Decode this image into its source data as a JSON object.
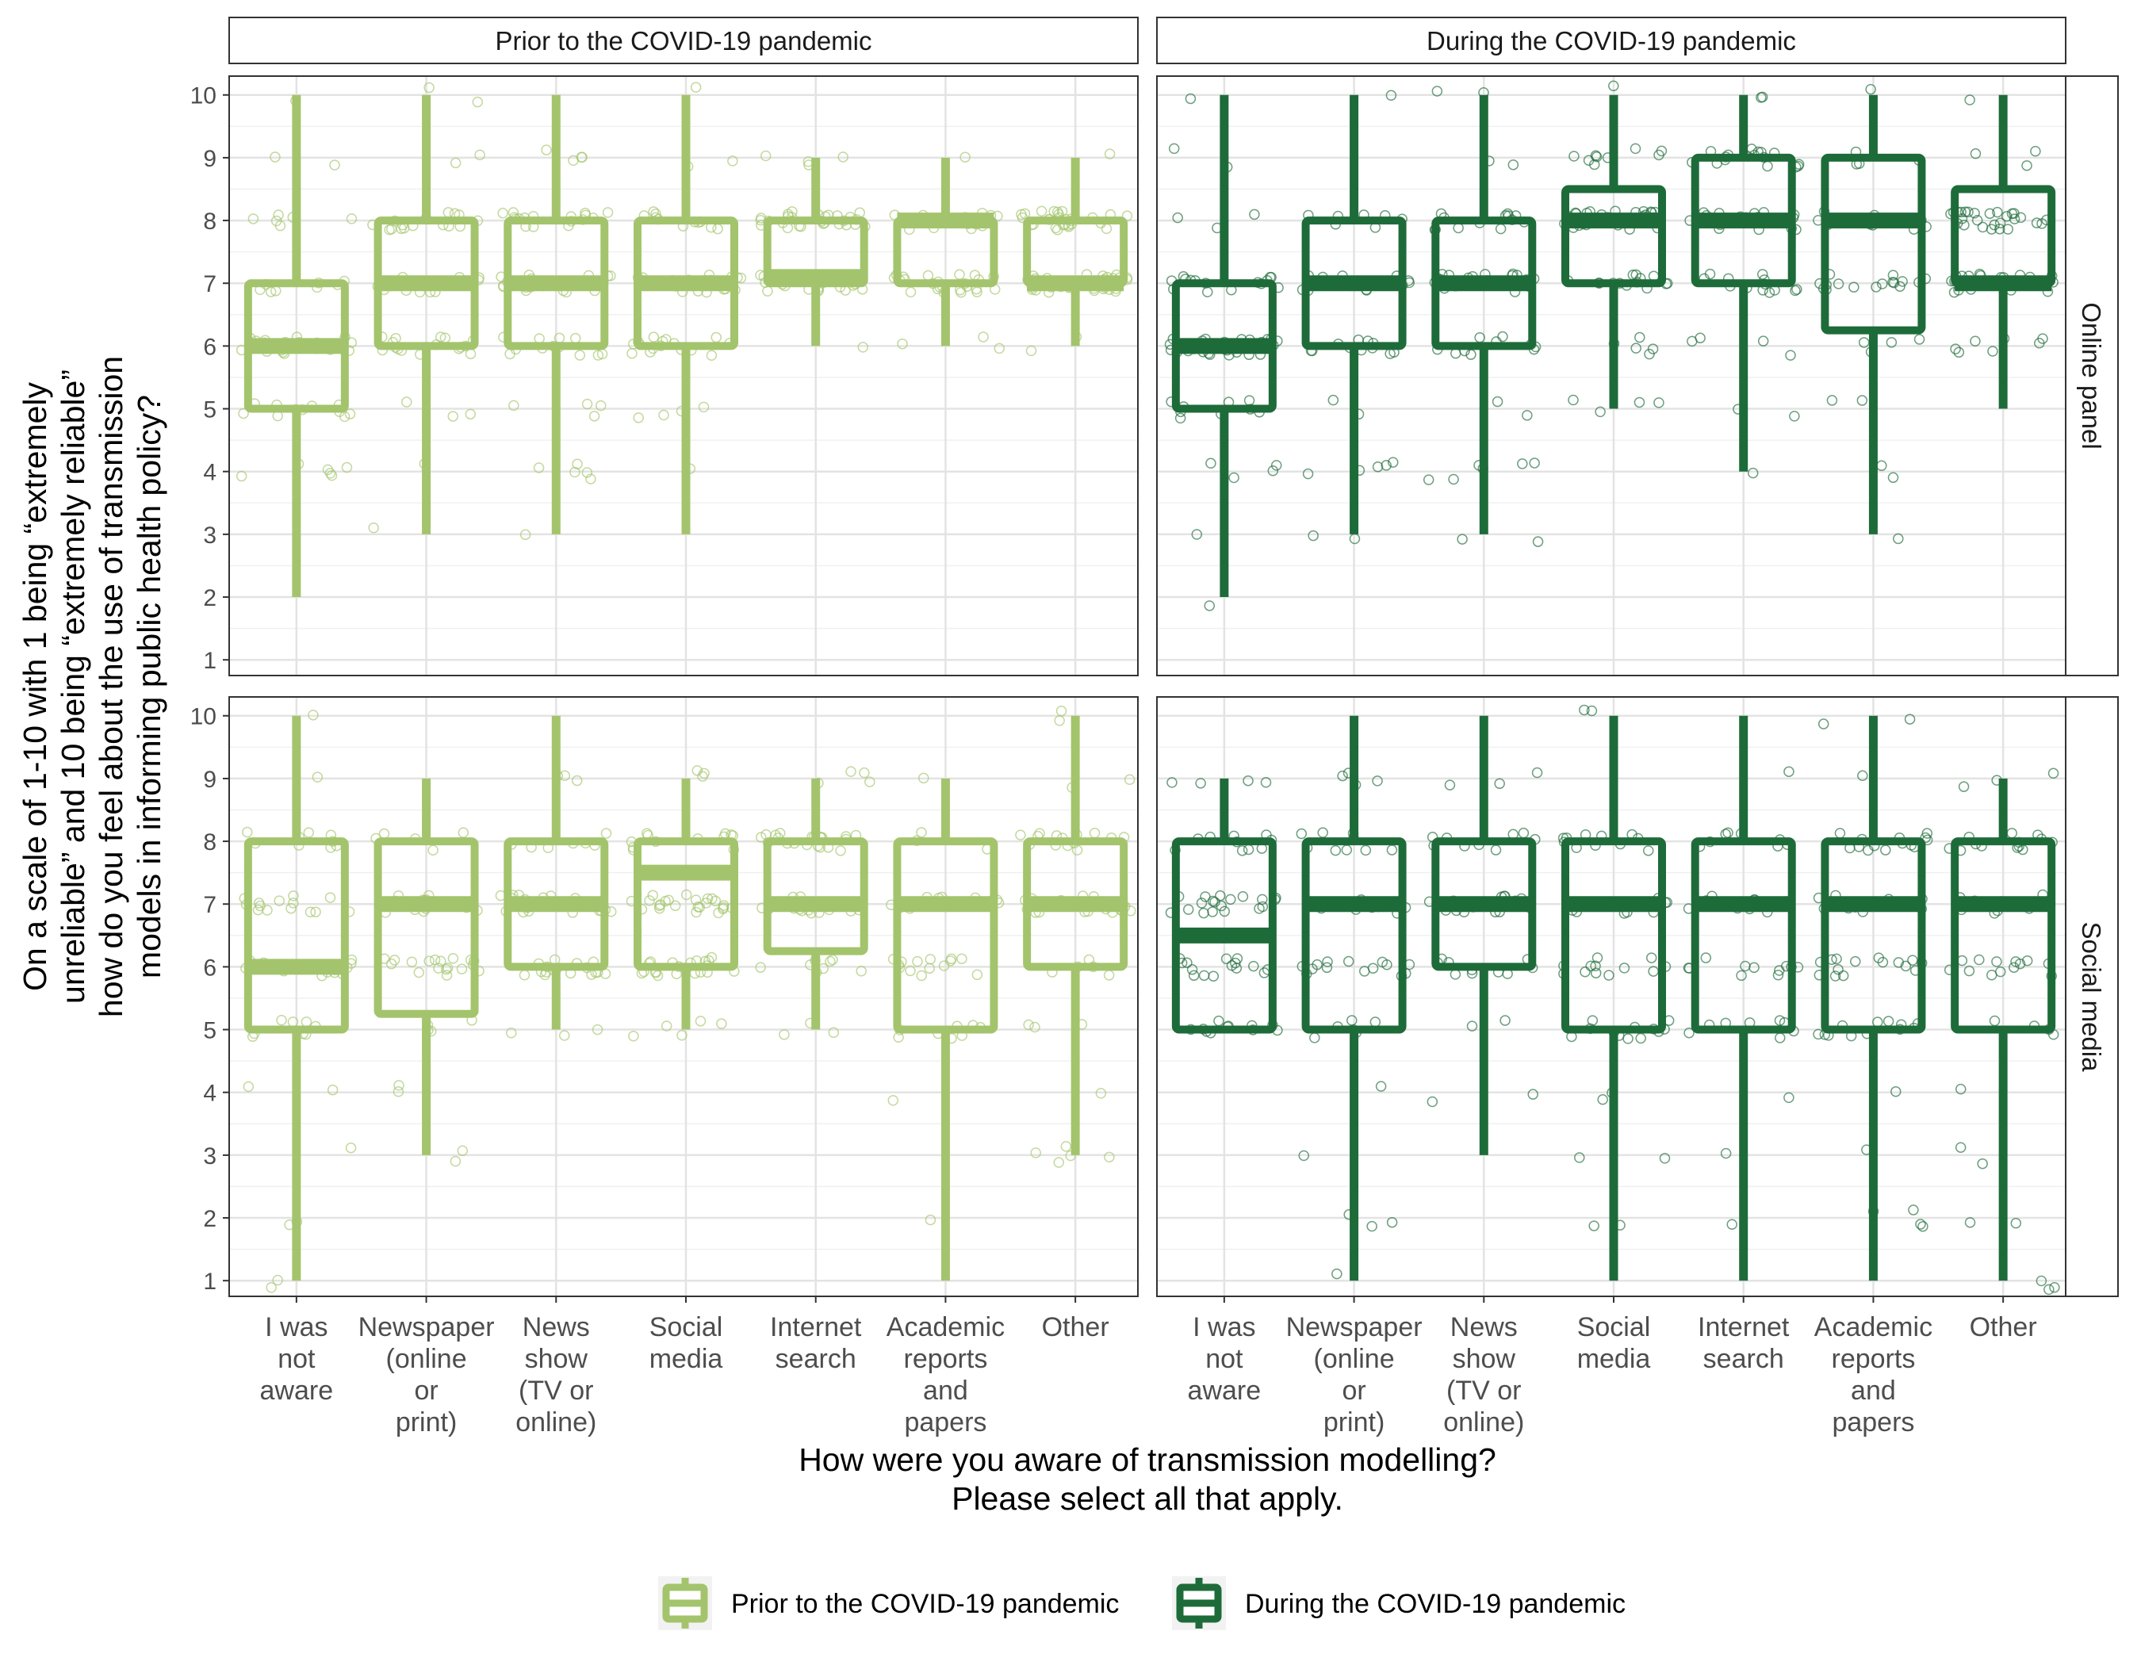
{
  "chart_data": {
    "type": "boxplot",
    "y_axis_label_lines": [
      "On a scale of 1-10 with 1 being “extremely",
      "unreliable” and 10 being “extremely reliable”",
      "how do you feel about the use of transmission",
      "models in informing public health policy?"
    ],
    "x_axis_label_lines": [
      "How were you aware of transmission modelling?",
      "Please select all that apply."
    ],
    "ylim": [
      1,
      10
    ],
    "y_ticks": [
      "1",
      "2",
      "3",
      "4",
      "5",
      "6",
      "7",
      "8",
      "9",
      "10"
    ],
    "grid": true,
    "legend_position": "bottom",
    "categories": [
      [
        "I was",
        "not",
        "aware"
      ],
      [
        "Newspaper",
        "(online",
        "or",
        "print)"
      ],
      [
        "News",
        "show",
        "(TV or",
        "online)"
      ],
      [
        "Social",
        "media"
      ],
      [
        "Internet",
        "search"
      ],
      [
        "Academic",
        "reports",
        "and",
        "papers"
      ],
      [
        "Other"
      ]
    ],
    "column_facets": [
      "Prior to the COVID-19 pandemic",
      "During the COVID-19 pandemic"
    ],
    "row_facets": [
      "Online panel",
      "Social media"
    ],
    "series": [
      {
        "name": "Prior to the COVID-19 pandemic",
        "color": "#a3c46c"
      },
      {
        "name": "During the COVID-19 pandemic",
        "color": "#1e6b3a"
      }
    ],
    "panels": [
      {
        "col": 0,
        "row": 0,
        "series": 0,
        "boxes": [
          {
            "min": 2,
            "q1": 5,
            "median": 6,
            "q3": 7,
            "max": 10
          },
          {
            "min": 3,
            "q1": 6,
            "median": 7,
            "q3": 8,
            "max": 10
          },
          {
            "min": 3,
            "q1": 6,
            "median": 7,
            "q3": 8,
            "max": 10
          },
          {
            "min": 3,
            "q1": 6,
            "median": 7,
            "q3": 8,
            "max": 10
          },
          {
            "min": 6,
            "q1": 7,
            "median": 7.1,
            "q3": 8,
            "max": 9
          },
          {
            "min": 6,
            "q1": 7,
            "median": 8,
            "q3": 8,
            "max": 9
          },
          {
            "min": 6,
            "q1": 7,
            "median": 7,
            "q3": 8,
            "max": 9
          }
        ]
      },
      {
        "col": 1,
        "row": 0,
        "series": 1,
        "boxes": [
          {
            "min": 2,
            "q1": 5,
            "median": 6,
            "q3": 7,
            "max": 10
          },
          {
            "min": 3,
            "q1": 6,
            "median": 7,
            "q3": 8,
            "max": 10
          },
          {
            "min": 3,
            "q1": 6,
            "median": 7,
            "q3": 8,
            "max": 10
          },
          {
            "min": 5,
            "q1": 7,
            "median": 8,
            "q3": 8.5,
            "max": 10
          },
          {
            "min": 4,
            "q1": 7,
            "median": 8,
            "q3": 9,
            "max": 10
          },
          {
            "min": 3,
            "q1": 6.25,
            "median": 8,
            "q3": 9,
            "max": 10
          },
          {
            "min": 5,
            "q1": 7,
            "median": 7,
            "q3": 8.5,
            "max": 10
          }
        ]
      },
      {
        "col": 0,
        "row": 1,
        "series": 0,
        "boxes": [
          {
            "min": 1,
            "q1": 5,
            "median": 6,
            "q3": 8,
            "max": 10
          },
          {
            "min": 3,
            "q1": 5.25,
            "median": 7,
            "q3": 8,
            "max": 9
          },
          {
            "min": 5,
            "q1": 6,
            "median": 7,
            "q3": 8,
            "max": 10
          },
          {
            "min": 5,
            "q1": 6,
            "median": 7.5,
            "q3": 8,
            "max": 9
          },
          {
            "min": 5,
            "q1": 6.25,
            "median": 7,
            "q3": 8,
            "max": 9
          },
          {
            "min": 1,
            "q1": 5,
            "median": 7,
            "q3": 8,
            "max": 9
          },
          {
            "min": 3,
            "q1": 6,
            "median": 7,
            "q3": 8,
            "max": 10
          }
        ]
      },
      {
        "col": 1,
        "row": 1,
        "series": 1,
        "boxes": [
          {
            "min": 5,
            "q1": 5,
            "median": 6.5,
            "q3": 8,
            "max": 9
          },
          {
            "min": 1,
            "q1": 5,
            "median": 7,
            "q3": 8,
            "max": 10
          },
          {
            "min": 3,
            "q1": 6,
            "median": 7,
            "q3": 8,
            "max": 10
          },
          {
            "min": 1,
            "q1": 5,
            "median": 7,
            "q3": 8,
            "max": 10
          },
          {
            "min": 1,
            "q1": 5,
            "median": 7,
            "q3": 8,
            "max": 10
          },
          {
            "min": 1,
            "q1": 5,
            "median": 7,
            "q3": 8,
            "max": 10
          },
          {
            "min": 1,
            "q1": 5,
            "median": 7,
            "q3": 8,
            "max": 9
          }
        ]
      }
    ]
  }
}
